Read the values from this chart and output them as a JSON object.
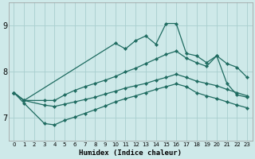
{
  "xlabel": "Humidex (Indice chaleur)",
  "ylabel": "",
  "xlim": [
    -0.5,
    23.5
  ],
  "ylim": [
    6.5,
    9.5
  ],
  "yticks": [
    7,
    8,
    9
  ],
  "xticks": [
    0,
    1,
    2,
    3,
    4,
    5,
    6,
    7,
    8,
    9,
    10,
    11,
    12,
    13,
    14,
    15,
    16,
    17,
    18,
    19,
    20,
    21,
    22,
    23
  ],
  "bg_color": "#cee9e9",
  "grid_color": "#a8cece",
  "line_color": "#1e6b60",
  "series": [
    {
      "x": [
        0,
        1,
        10,
        11,
        12,
        13,
        14,
        15,
        16,
        17,
        18,
        19,
        20,
        21,
        22,
        23
      ],
      "y": [
        7.55,
        7.38,
        8.62,
        8.5,
        8.68,
        8.78,
        8.6,
        9.05,
        9.05,
        8.4,
        8.35,
        8.2,
        8.35,
        7.75,
        7.5,
        7.45
      ]
    },
    {
      "x": [
        0,
        1,
        3,
        4,
        5,
        6,
        7,
        8,
        9,
        10,
        11,
        12,
        13,
        14,
        15,
        16,
        17,
        18,
        19,
        20,
        21,
        22,
        23
      ],
      "y": [
        7.55,
        7.38,
        7.38,
        7.38,
        7.5,
        7.6,
        7.68,
        7.75,
        7.82,
        7.9,
        8.0,
        8.08,
        8.18,
        8.28,
        8.38,
        8.45,
        8.3,
        8.2,
        8.12,
        8.35,
        8.18,
        8.1,
        7.88
      ]
    },
    {
      "x": [
        0,
        1,
        3,
        4,
        5,
        6,
        7,
        8,
        9,
        10,
        11,
        12,
        13,
        14,
        15,
        16,
        17,
        18,
        19,
        20,
        21,
        22,
        23
      ],
      "y": [
        7.55,
        7.38,
        7.28,
        7.25,
        7.3,
        7.35,
        7.4,
        7.45,
        7.52,
        7.58,
        7.65,
        7.7,
        7.75,
        7.82,
        7.88,
        7.95,
        7.88,
        7.8,
        7.75,
        7.7,
        7.62,
        7.55,
        7.48
      ]
    },
    {
      "x": [
        0,
        1,
        3,
        4,
        5,
        6,
        7,
        8,
        9,
        10,
        11,
        12,
        13,
        14,
        15,
        16,
        17,
        18,
        19,
        20,
        21,
        22,
        23
      ],
      "y": [
        7.55,
        7.32,
        6.88,
        6.85,
        6.95,
        7.02,
        7.1,
        7.18,
        7.26,
        7.35,
        7.42,
        7.48,
        7.55,
        7.62,
        7.68,
        7.74,
        7.68,
        7.55,
        7.48,
        7.42,
        7.35,
        7.28,
        7.22
      ]
    }
  ]
}
